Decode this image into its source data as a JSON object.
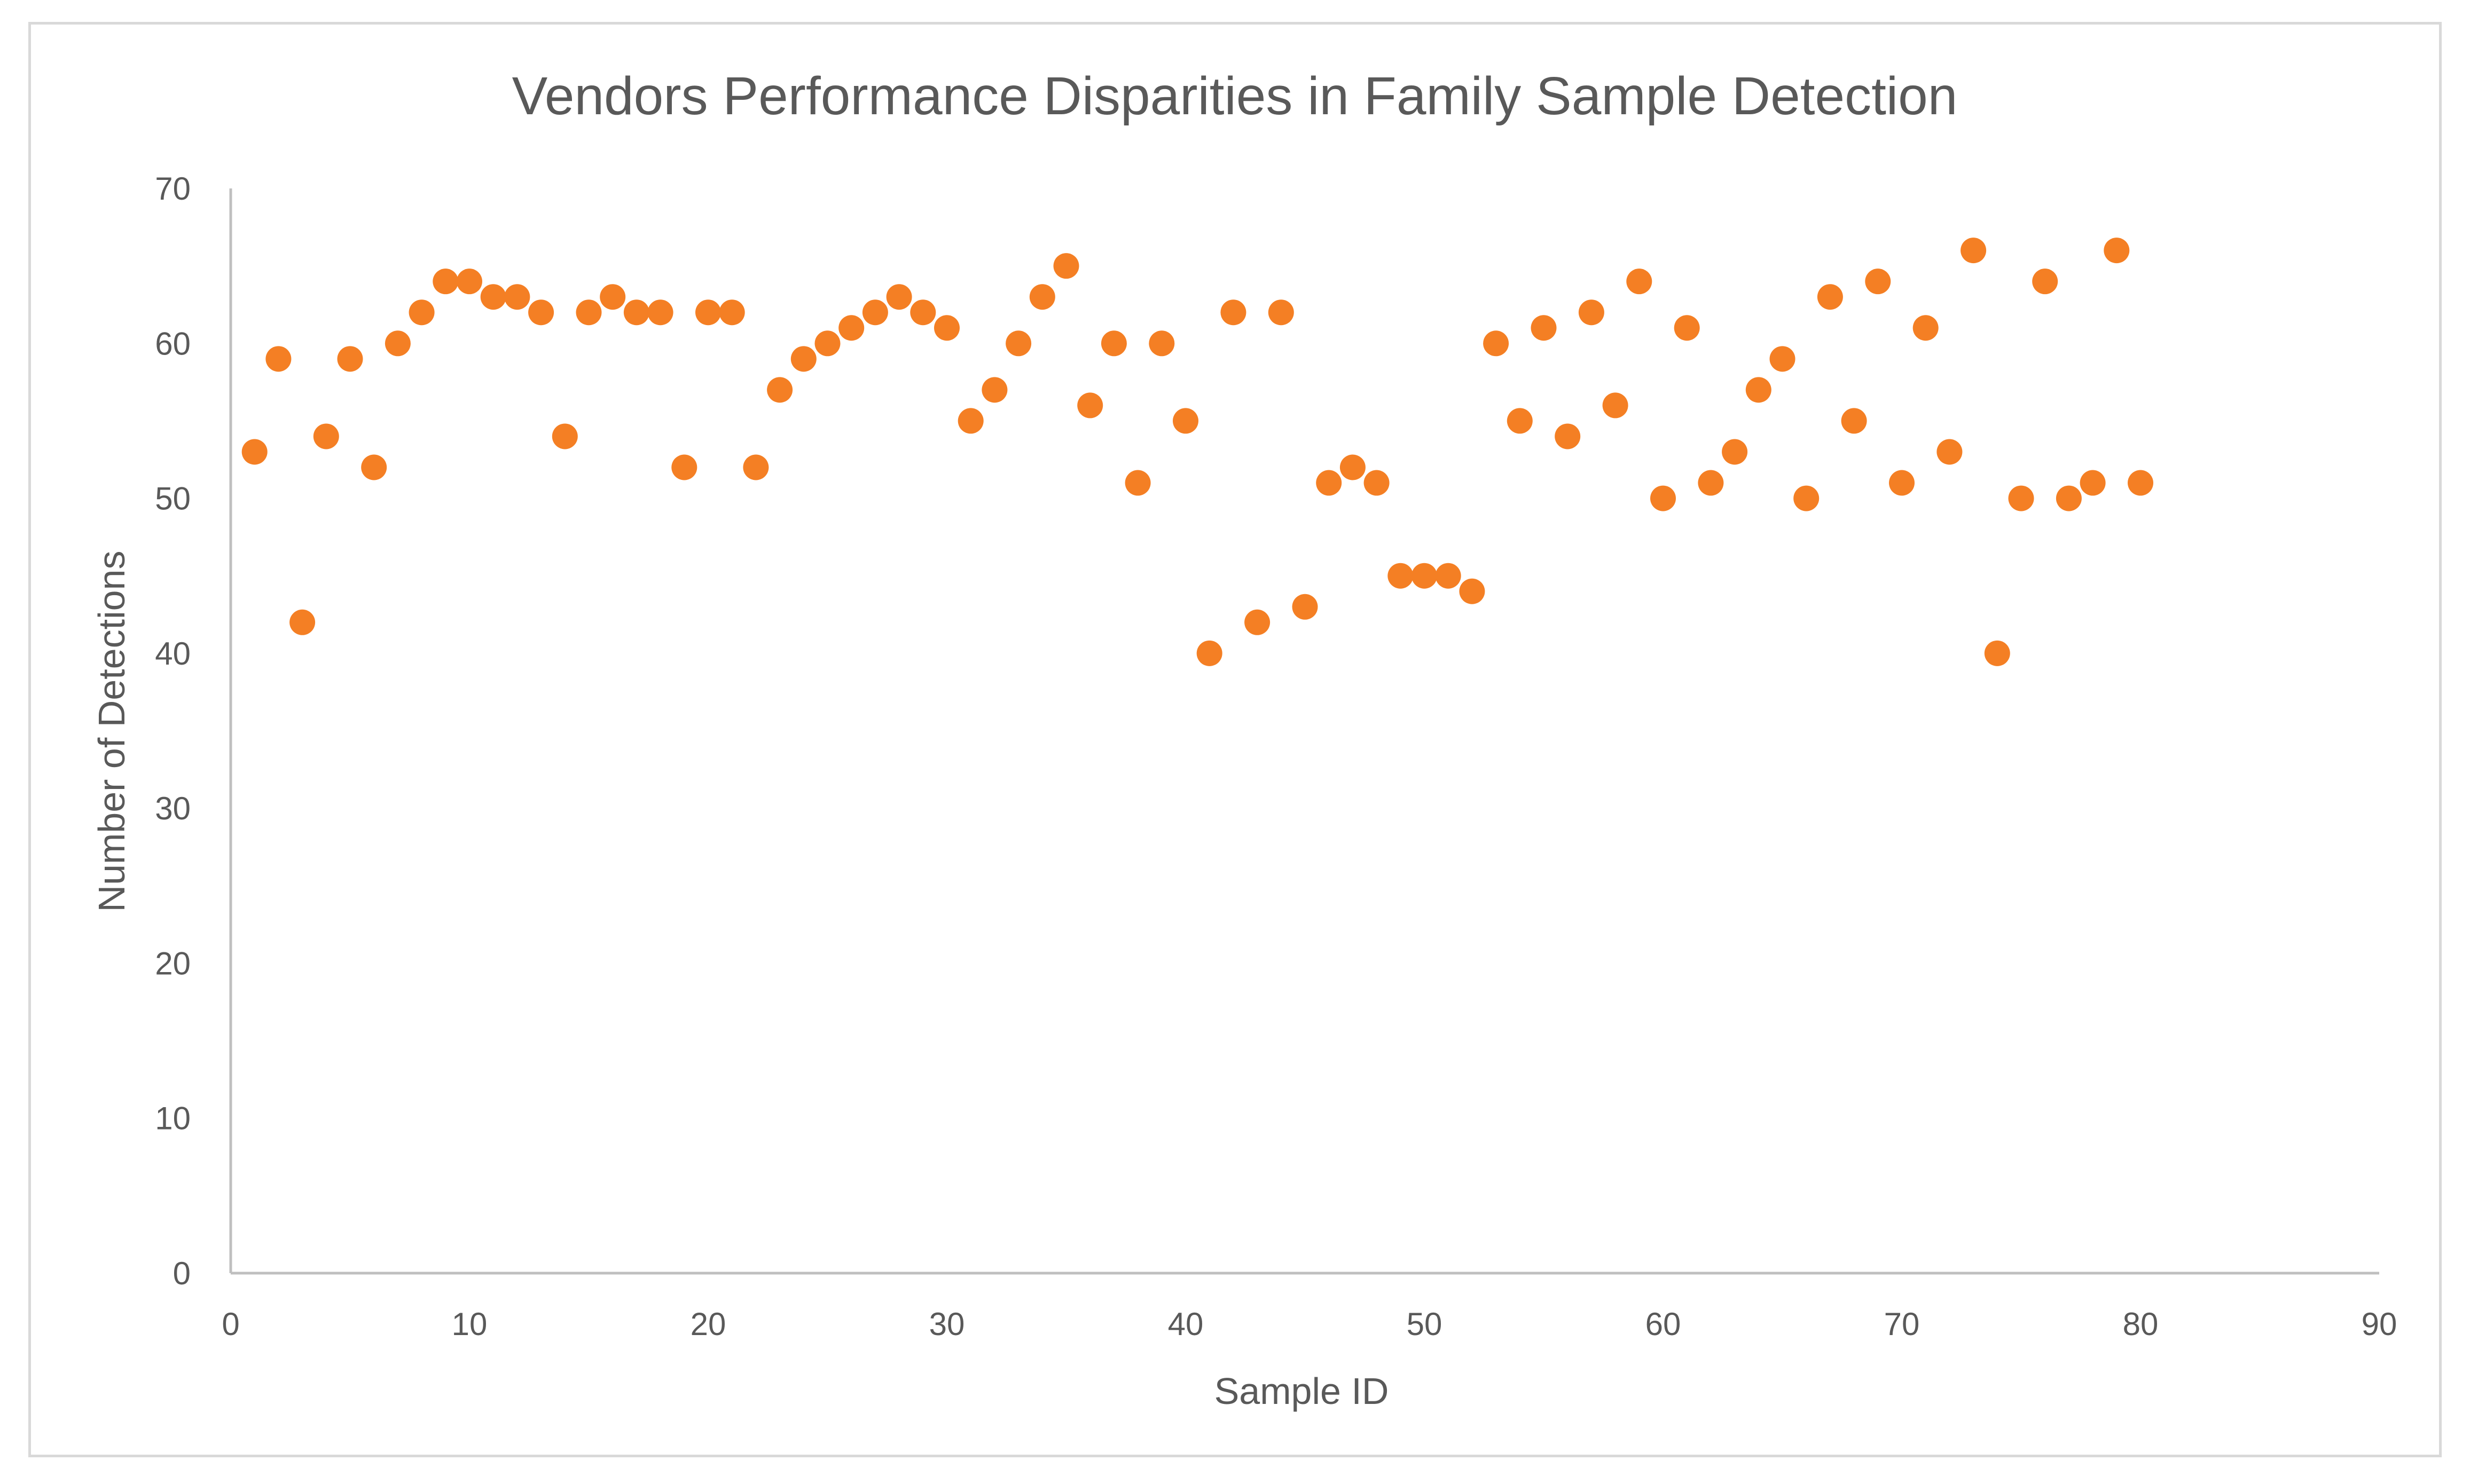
{
  "chart_data": {
    "type": "scatter",
    "title": "Vendors Performance Disparities in Family Sample Detection",
    "xlabel": "Sample ID",
    "ylabel": "Number of Detections",
    "xlim": [
      0,
      90
    ],
    "ylim": [
      0,
      70
    ],
    "x_ticks": [
      "0",
      "10",
      "20",
      "30",
      "40",
      "50",
      "60",
      "70",
      "80",
      "90"
    ],
    "y_ticks": [
      "0",
      "10",
      "20",
      "30",
      "40",
      "50",
      "60",
      "70"
    ],
    "grid": false,
    "legend": "none",
    "marker_color": "#f47f24",
    "series": [
      {
        "name": "Number of Detections",
        "x": [
          1,
          2,
          3,
          4,
          5,
          6,
          7,
          8,
          9,
          10,
          11,
          12,
          13,
          14,
          15,
          16,
          17,
          18,
          19,
          20,
          21,
          22,
          23,
          24,
          25,
          26,
          27,
          28,
          29,
          30,
          31,
          32,
          33,
          34,
          35,
          36,
          37,
          38,
          39,
          40,
          41,
          42,
          43,
          44,
          45,
          46,
          47,
          48,
          49,
          50,
          51,
          52,
          53,
          54,
          55,
          56,
          57,
          58,
          59,
          60,
          61,
          62,
          63,
          64,
          65,
          66,
          67,
          68,
          69,
          70,
          71,
          72,
          73,
          74,
          75,
          76,
          77,
          78,
          79,
          80
        ],
        "y": [
          53,
          59,
          42,
          54,
          59,
          52,
          60,
          62,
          64,
          64,
          63,
          63,
          62,
          54,
          62,
          63,
          62,
          62,
          52,
          62,
          62,
          52,
          57,
          59,
          60,
          61,
          62,
          63,
          62,
          61,
          55,
          57,
          60,
          63,
          65,
          56,
          60,
          51,
          60,
          55,
          40,
          62,
          42,
          62,
          43,
          51,
          52,
          51,
          45,
          45,
          45,
          44,
          60,
          55,
          61,
          54,
          62,
          56,
          64,
          50,
          61,
          51,
          53,
          57,
          59,
          50,
          63,
          55,
          64,
          51,
          61,
          53,
          66,
          40,
          50,
          64,
          50,
          51,
          66,
          51
        ]
      }
    ]
  }
}
